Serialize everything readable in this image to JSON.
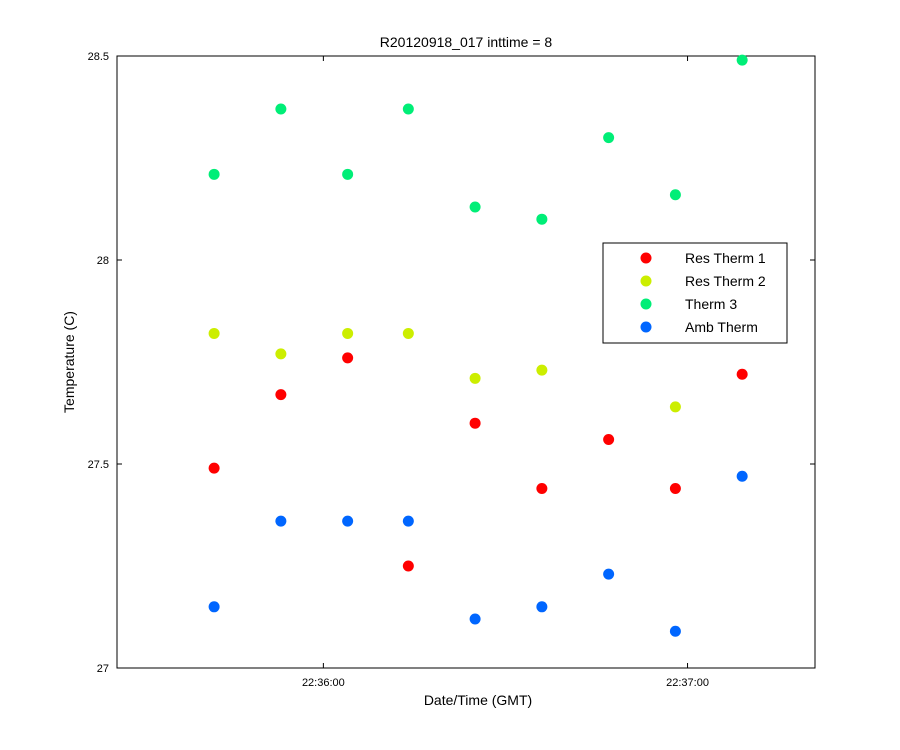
{
  "chart_data": {
    "type": "scatter",
    "title": "R20120918_017 inttime = 8",
    "xlabel": "Date/Time (GMT)",
    "ylabel": "Temperature (C)",
    "xlim": [
      "22:35:26",
      "22:37:21"
    ],
    "ylim": [
      27,
      28.5
    ],
    "x_ticks": [
      "22:36:00",
      "22:37:00"
    ],
    "y_ticks": [
      27,
      27.5,
      28,
      28.5
    ],
    "y_tick_labels": [
      "27",
      "27.5",
      "28",
      "28.5"
    ],
    "grid": false,
    "legend_position": "right",
    "x": [
      "22:35:42",
      "22:35:53",
      "22:36:04",
      "22:36:14",
      "22:36:25",
      "22:36:36",
      "22:36:47",
      "22:36:58",
      "22:37:09"
    ],
    "series": [
      {
        "name": "Res Therm 1",
        "color": "#ff0000",
        "values": [
          27.49,
          27.67,
          27.76,
          27.25,
          27.6,
          27.44,
          27.56,
          27.44,
          27.72
        ]
      },
      {
        "name": "Res Therm 2",
        "color": "#ccee00",
        "values": [
          27.82,
          27.77,
          27.82,
          27.82,
          27.71,
          27.73,
          27.85,
          27.64,
          null
        ]
      },
      {
        "name": "Therm 3",
        "color": "#00ee77",
        "values": [
          28.21,
          28.37,
          28.21,
          28.37,
          28.13,
          28.1,
          28.3,
          28.16,
          28.49
        ]
      },
      {
        "name": "Amb Therm",
        "color": "#0066ff",
        "values": [
          27.15,
          27.36,
          27.36,
          27.36,
          27.12,
          27.15,
          27.23,
          27.09,
          27.47
        ]
      }
    ]
  }
}
